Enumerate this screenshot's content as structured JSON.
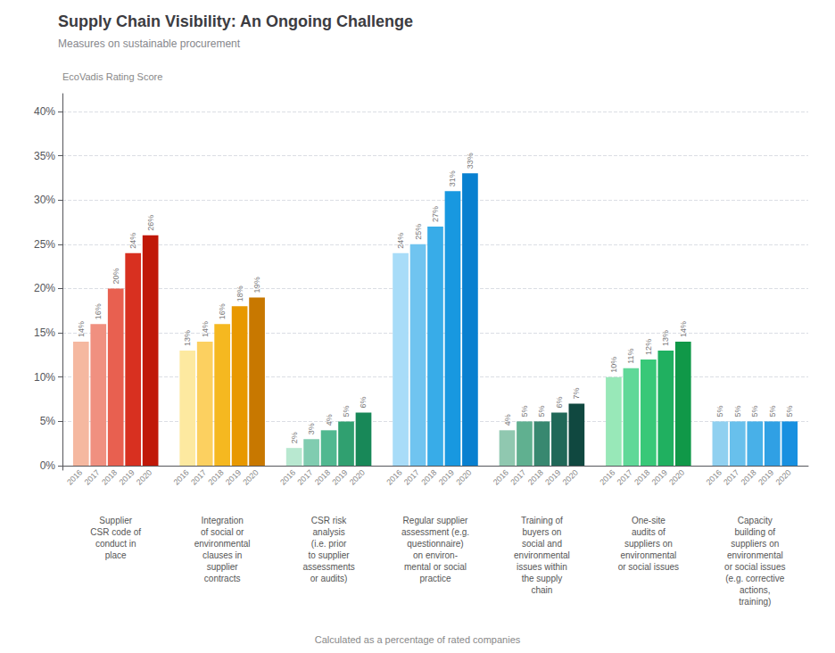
{
  "chart_data": {
    "type": "bar",
    "title": "Supply Chain Visibility: An Ongoing Challenge",
    "subtitle": "Measures on sustainable procurement",
    "ylabel": "EcoVadis Rating Score",
    "footnote": "Calculated as a percentage of rated companies",
    "categories": [
      "Supplier\nCSR code of\nconduct in\nplace",
      "Integration\nof social or\nenvironmental\nclauses in\nsupplier\ncontracts",
      "CSR risk\nanalysis\n(i.e. prior\nto supplier\nassessments\nor audits)",
      "Regular supplier\nassessment (e.g.\nquestionnaire)\non environ-\nmental or social\npractice",
      "Training of\nbuyers on\nsocial and\nenvironmental\nissues within\nthe supply\nchain",
      "One-site\naudits of\nsuppliers on\nenvironmental\nor social issues",
      "Capacity\nbuilding of\nsuppliers on\nenvironmental\nor social issues\n(e.g. corrective\nactions,\ntraining)"
    ],
    "series": [
      {
        "name": "2016",
        "values": [
          14,
          13,
          2,
          24,
          4,
          10,
          5
        ],
        "value_labels": [
          "14%",
          "13%",
          "2%",
          "24%",
          "4%",
          "10%",
          "5%"
        ],
        "colors": [
          "#f5b8a0",
          "#fde9a0",
          "#b8e8d0",
          "#a8dcf8",
          "#90c8b0",
          "#98e8b8",
          "#90d0f0"
        ]
      },
      {
        "name": "2017",
        "values": [
          16,
          14,
          3,
          25,
          5,
          11,
          5
        ],
        "value_labels": [
          "16%",
          "14%",
          "3%",
          "25%",
          "5%",
          "11%",
          "5%"
        ],
        "colors": [
          "#f09080",
          "#fcd060",
          "#80ccb0",
          "#70c4f0",
          "#60b090",
          "#60d898",
          "#68c0ec"
        ]
      },
      {
        "name": "2018",
        "values": [
          20,
          16,
          4,
          27,
          5,
          12,
          5
        ],
        "value_labels": [
          "20%",
          "16%",
          "4%",
          "27%",
          "5%",
          "12%",
          "5%"
        ],
        "colors": [
          "#e86050",
          "#f5b820",
          "#50b890",
          "#38ace8",
          "#388870",
          "#38c878",
          "#48b0e8"
        ]
      },
      {
        "name": "2019",
        "values": [
          24,
          18,
          5,
          31,
          6,
          13,
          5
        ],
        "value_labels": [
          "24%",
          "18%",
          "5%",
          "31%",
          "6%",
          "13%",
          "5%"
        ],
        "colors": [
          "#d83020",
          "#e89800",
          "#30a070",
          "#1898e0",
          "#206858",
          "#20b060",
          "#30a0e4"
        ]
      },
      {
        "name": "2020",
        "values": [
          26,
          19,
          6,
          33,
          7,
          14,
          5
        ],
        "value_labels": [
          "26%",
          "19%",
          "6%",
          "33%",
          "7%",
          "14%",
          "5%"
        ],
        "colors": [
          "#c01808",
          "#c87800",
          "#188858",
          "#0880d0",
          "#104840",
          "#109848",
          "#1890e0"
        ]
      }
    ],
    "ylim": [
      -0.5,
      42
    ],
    "yticks": [
      {
        "value": 0,
        "label": "0%"
      },
      {
        "value": 5,
        "label": "5%"
      },
      {
        "value": 10,
        "label": "10%"
      },
      {
        "value": 15,
        "label": "15%"
      },
      {
        "value": 20,
        "label": "20%"
      },
      {
        "value": 25,
        "label": "25%"
      },
      {
        "value": 30,
        "label": "30%"
      },
      {
        "value": 35,
        "label": "35%"
      },
      {
        "value": 40,
        "label": "40%"
      }
    ],
    "grid": true,
    "data_labels": true
  }
}
